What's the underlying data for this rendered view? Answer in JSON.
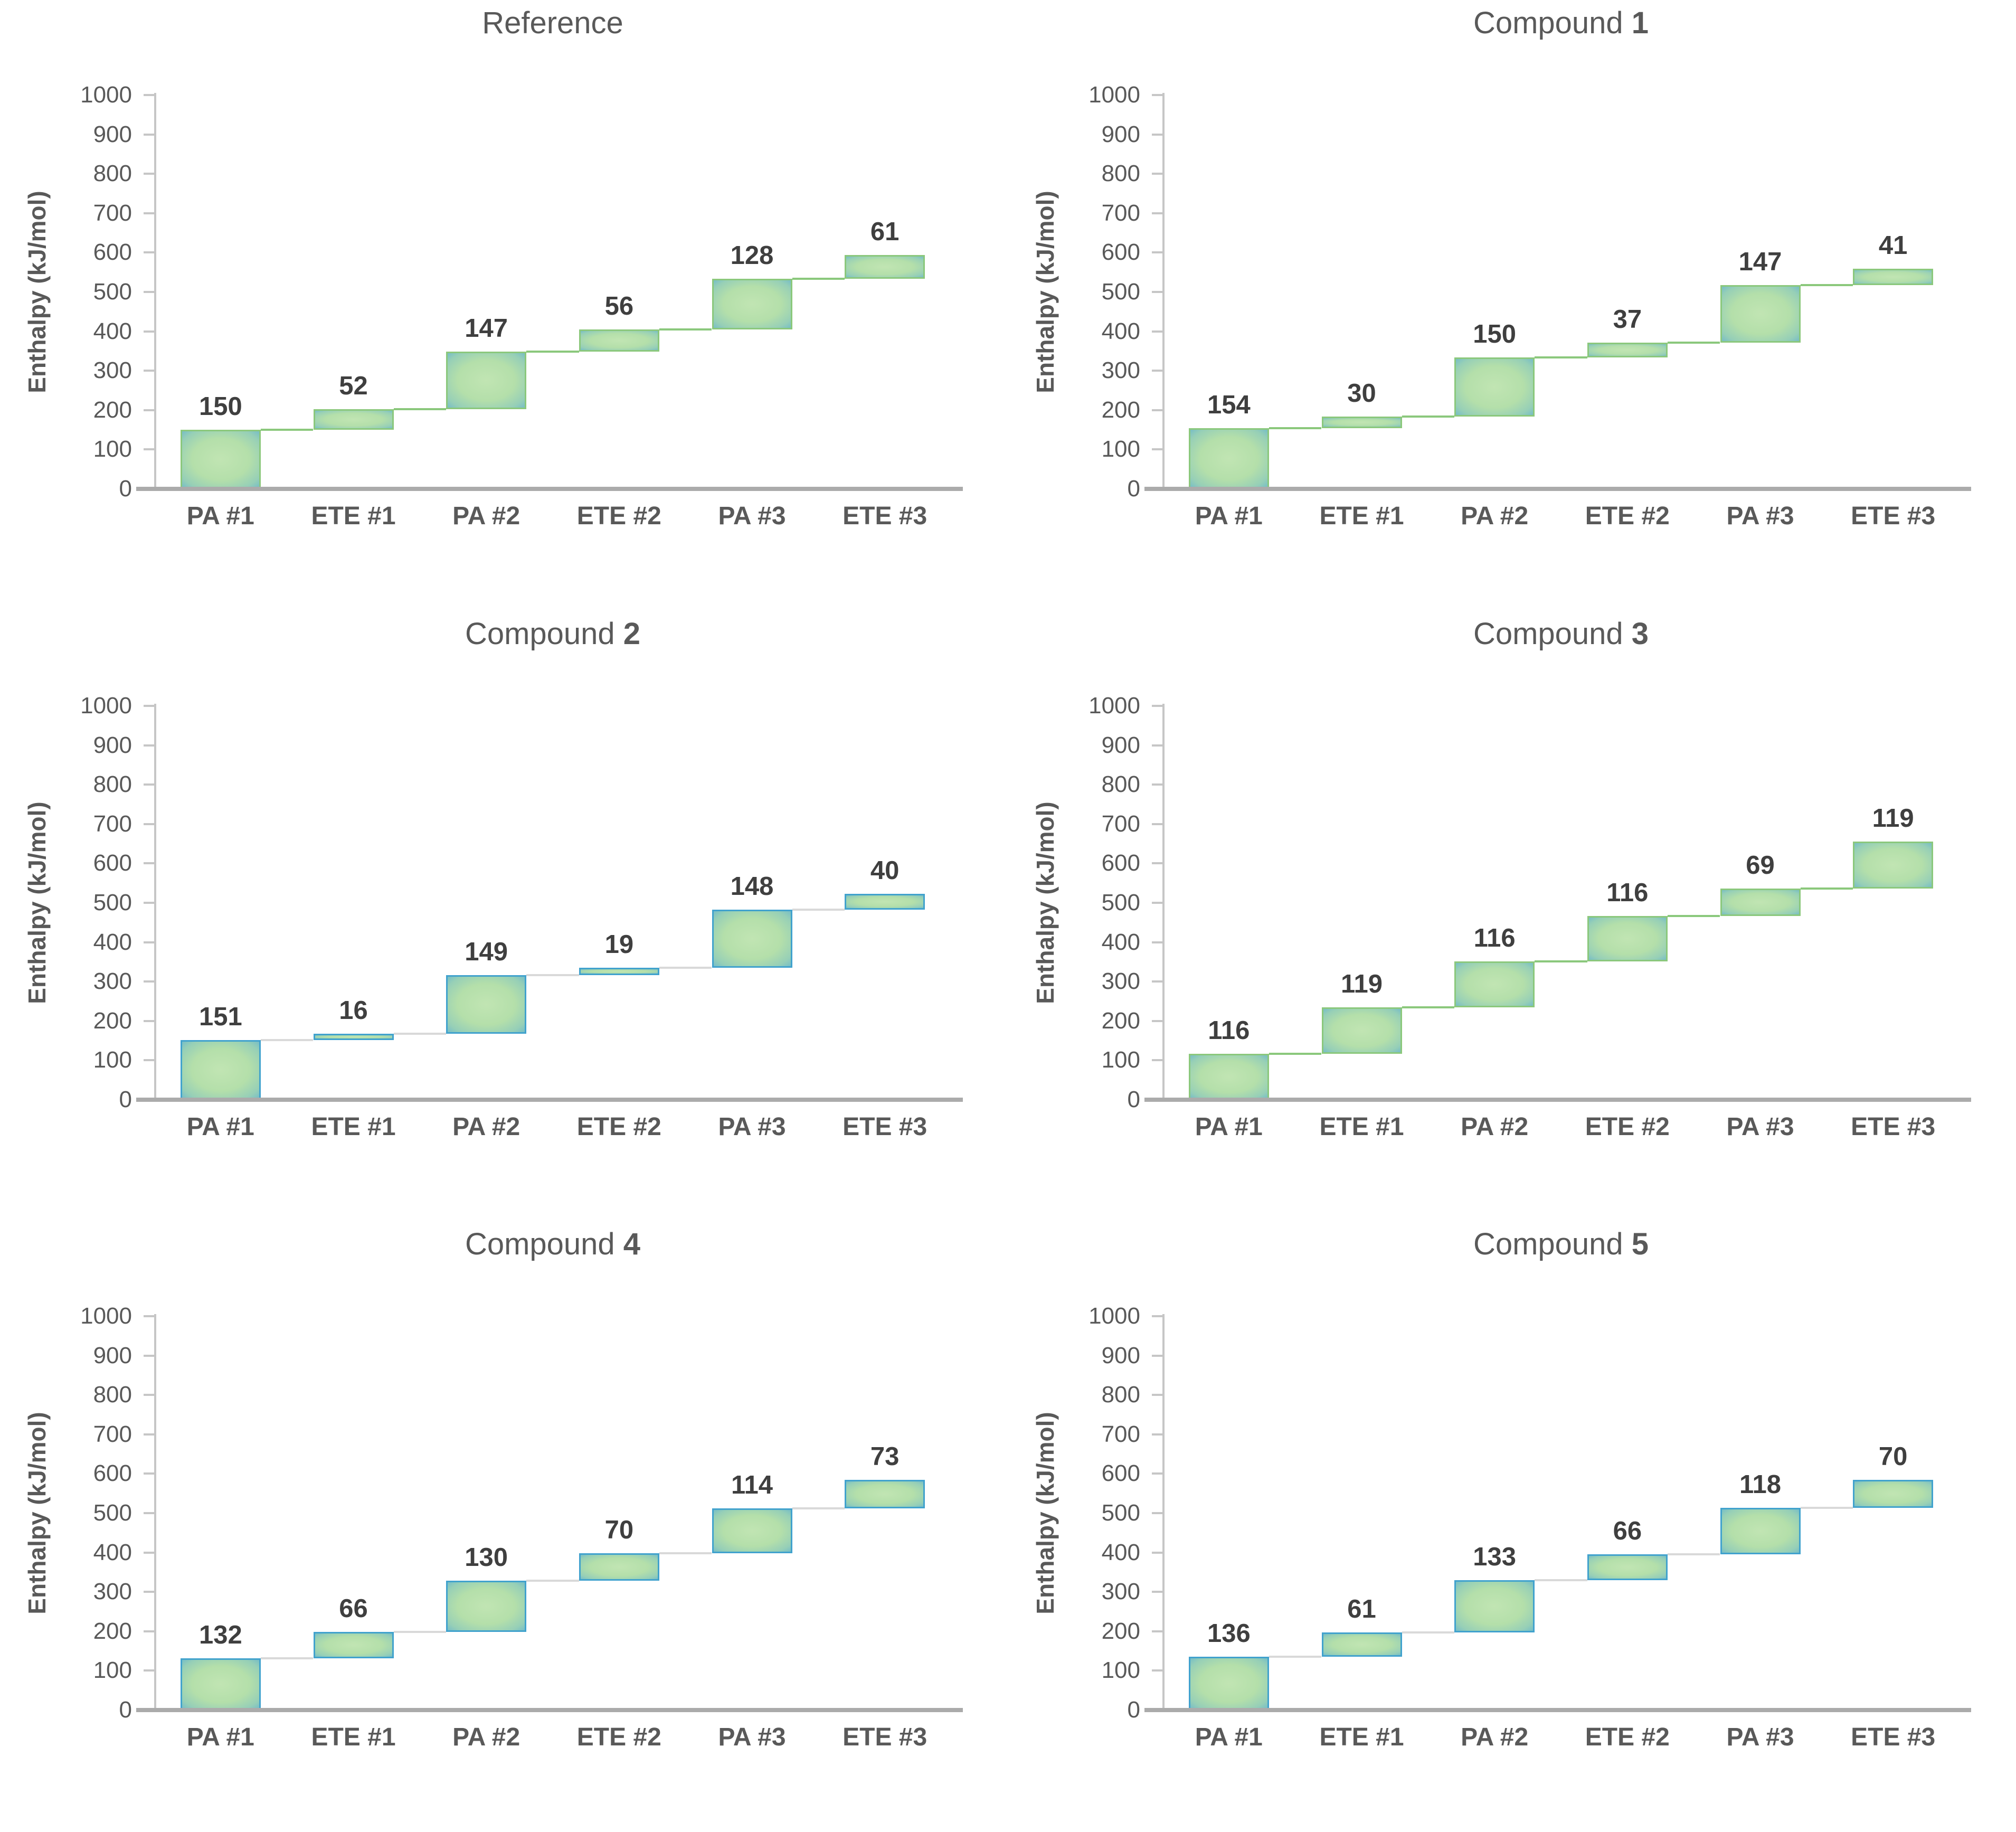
{
  "figure": {
    "background": "#ffffff",
    "layout": {
      "columns": 2,
      "rows": 3
    },
    "description": "Six waterfall charts of cumulative bond enthalpies"
  },
  "axis": {
    "y_title": "Enthalpy (kJ/mol)",
    "y_max": 1000,
    "y_tick_step": 100,
    "y_ticks": [
      1000,
      900,
      800,
      700,
      600,
      500,
      400,
      300,
      200,
      100,
      0
    ],
    "categories": [
      "PA #1",
      "ETE #1",
      "PA #2",
      "ETE #2",
      "PA #3",
      "ETE #3"
    ]
  },
  "style": {
    "text_color": "#595959",
    "data_label_color": "#3f3f3f",
    "axis_line_color": "#c6c6c6",
    "baseline_color": "#ababab",
    "bar_fill_center": "#b4dfaa",
    "bar_fill_edge": "#63b2d0",
    "green_accent": "#8bc87c",
    "blue_accent": "#41a2cd",
    "connector_gray": "#d9d9d9"
  },
  "chart_data": [
    {
      "type": "bar",
      "subtype": "waterfall",
      "title": "Reference",
      "title_prefix": "Reference",
      "title_bold": "",
      "categories": [
        "PA #1",
        "ETE #1",
        "PA #2",
        "ETE #2",
        "PA #3",
        "ETE #3"
      ],
      "values": [
        150,
        52,
        147,
        56,
        128,
        61
      ],
      "cumulative": [
        150,
        202,
        349,
        405,
        533,
        594
      ],
      "ylabel": "Enthalpy (kJ/mol)",
      "ylim": [
        0,
        1000
      ],
      "grid": false,
      "legend": false,
      "bar_border_color": "#8bc87c",
      "connector_color": "#8bc87c"
    },
    {
      "type": "bar",
      "subtype": "waterfall",
      "title": "Compound 1",
      "title_prefix": "Compound ",
      "title_bold": "1",
      "categories": [
        "PA #1",
        "ETE #1",
        "PA #2",
        "ETE #2",
        "PA #3",
        "ETE #3"
      ],
      "values": [
        154,
        30,
        150,
        37,
        147,
        41
      ],
      "cumulative": [
        154,
        184,
        334,
        371,
        518,
        559
      ],
      "ylabel": "Enthalpy (kJ/mol)",
      "ylim": [
        0,
        1000
      ],
      "grid": false,
      "legend": false,
      "bar_border_color": "#8bc87c",
      "connector_color": "#8bc87c"
    },
    {
      "type": "bar",
      "subtype": "waterfall",
      "title": "Compound 2",
      "title_prefix": "Compound ",
      "title_bold": "2",
      "categories": [
        "PA #1",
        "ETE #1",
        "PA #2",
        "ETE #2",
        "PA #3",
        "ETE #3"
      ],
      "values": [
        151,
        16,
        149,
        19,
        148,
        40
      ],
      "cumulative": [
        151,
        167,
        316,
        335,
        483,
        523
      ],
      "ylabel": "Enthalpy (kJ/mol)",
      "ylim": [
        0,
        1000
      ],
      "grid": false,
      "legend": false,
      "bar_border_color": "#41a2cd",
      "connector_color": "#d9d9d9"
    },
    {
      "type": "bar",
      "subtype": "waterfall",
      "title": "Compound 3",
      "title_prefix": "Compound ",
      "title_bold": "3",
      "categories": [
        "PA #1",
        "ETE #1",
        "PA #2",
        "ETE #2",
        "PA #3",
        "ETE #3"
      ],
      "values": [
        116,
        119,
        116,
        116,
        69,
        119
      ],
      "cumulative": [
        116,
        235,
        351,
        467,
        536,
        655
      ],
      "ylabel": "Enthalpy (kJ/mol)",
      "ylim": [
        0,
        1000
      ],
      "grid": false,
      "legend": false,
      "bar_border_color": "#8bc87c",
      "connector_color": "#8bc87c"
    },
    {
      "type": "bar",
      "subtype": "waterfall",
      "title": "Compound 4",
      "title_prefix": "Compound ",
      "title_bold": "4",
      "categories": [
        "PA #1",
        "ETE #1",
        "PA #2",
        "ETE #2",
        "PA #3",
        "ETE #3"
      ],
      "values": [
        132,
        66,
        130,
        70,
        114,
        73
      ],
      "cumulative": [
        132,
        198,
        328,
        398,
        512,
        585
      ],
      "ylabel": "Enthalpy (kJ/mol)",
      "ylim": [
        0,
        1000
      ],
      "grid": false,
      "legend": false,
      "bar_border_color": "#41a2cd",
      "connector_color": "#d9d9d9"
    },
    {
      "type": "bar",
      "subtype": "waterfall",
      "title": "Compound 5",
      "title_prefix": "Compound ",
      "title_bold": "5",
      "categories": [
        "PA #1",
        "ETE #1",
        "PA #2",
        "ETE #2",
        "PA #3",
        "ETE #3"
      ],
      "values": [
        136,
        61,
        133,
        66,
        118,
        70
      ],
      "cumulative": [
        136,
        197,
        330,
        396,
        514,
        584
      ],
      "ylabel": "Enthalpy (kJ/mol)",
      "ylim": [
        0,
        1000
      ],
      "grid": false,
      "legend": false,
      "bar_border_color": "#41a2cd",
      "connector_color": "#d9d9d9"
    }
  ]
}
